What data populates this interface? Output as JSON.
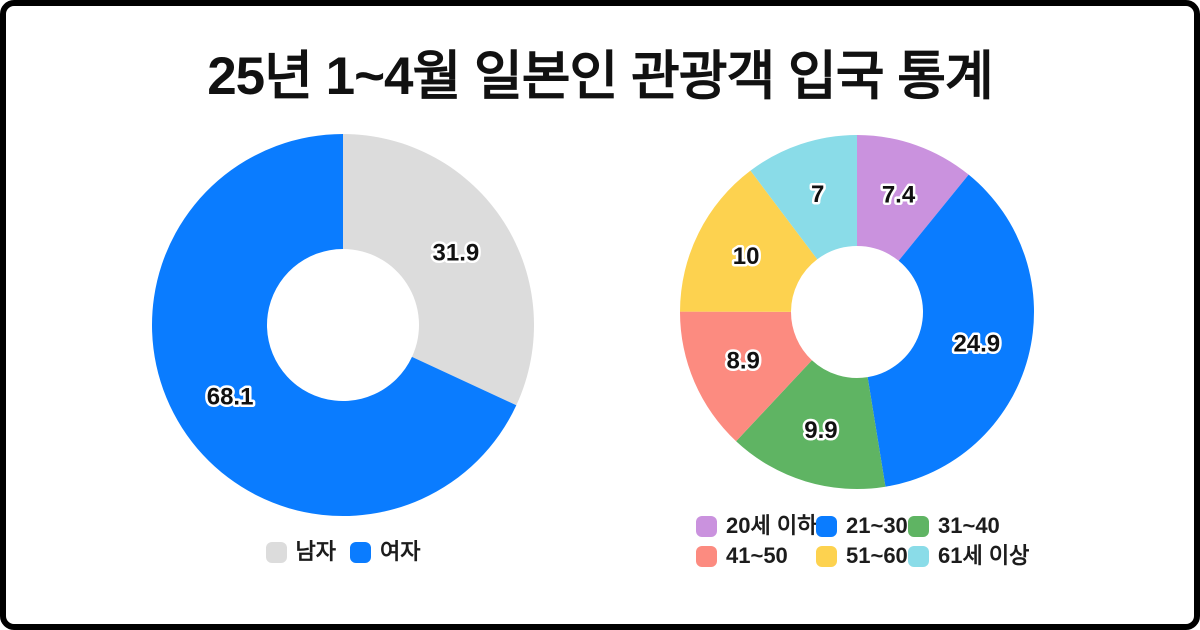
{
  "title": "25년 1~4월 일본인 관광객 입국 통계",
  "colors": {
    "background": "#ffffff",
    "frame_border": "#000000",
    "title_text": "#111111",
    "value_label_text": "#111111",
    "value_label_outline": "#ffffff"
  },
  "chart_data": [
    {
      "type": "pie",
      "subtype": "donut",
      "name": "gender-share",
      "legend_position": "bottom",
      "start_angle": "12-oclock-clockwise",
      "categories": [
        "남자",
        "여자"
      ],
      "values": [
        31.9,
        68.1
      ],
      "value_labels": [
        "31.9",
        "68.1"
      ],
      "colors": [
        "#dcdcdc",
        "#0a7cff"
      ]
    },
    {
      "type": "pie",
      "subtype": "donut",
      "name": "age-group-share",
      "legend_position": "bottom",
      "start_angle": "12-oclock-clockwise",
      "categories": [
        "20세 이하",
        "21~30",
        "31~40",
        "41~50",
        "51~60",
        "61세 이상"
      ],
      "values": [
        7.4,
        24.9,
        9.9,
        8.9,
        10,
        7
      ],
      "value_labels": [
        "7.4",
        "24.9",
        "9.9",
        "8.9",
        "10",
        "7"
      ],
      "colors": [
        "#ca92de",
        "#0a7cff",
        "#5fb463",
        "#fc8b80",
        "#fdd24f",
        "#8adce8"
      ]
    }
  ]
}
